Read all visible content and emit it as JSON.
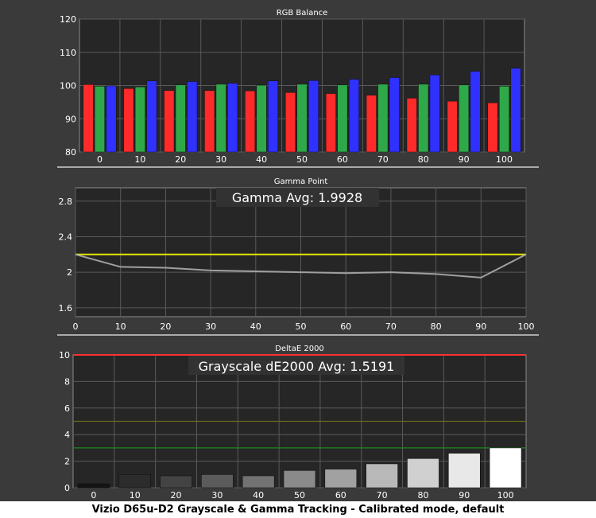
{
  "caption": "Vizio D65u-D2 Grayscale & Gamma Tracking - Calibrated mode, default",
  "colors": {
    "red": "#ff2a2a",
    "green": "#2fa84a",
    "blue": "#3030ff",
    "yellow": "#e6e600",
    "refline": "#ff3030"
  },
  "chart_data": [
    {
      "type": "bar",
      "title": "RGB Balance",
      "categories": [
        "0",
        "10",
        "20",
        "30",
        "40",
        "50",
        "60",
        "70",
        "80",
        "90",
        "100"
      ],
      "series": [
        {
          "color": "red",
          "values": [
            100.3,
            99.1,
            98.5,
            98.5,
            98.4,
            97.9,
            97.6,
            97.1,
            96.2,
            95.3,
            94.8
          ]
        },
        {
          "color": "green",
          "values": [
            99.8,
            99.6,
            100.2,
            100.4,
            100.1,
            100.4,
            100.2,
            100.4,
            100.4,
            100.2,
            99.8
          ]
        },
        {
          "color": "blue",
          "values": [
            99.9,
            101.4,
            101.2,
            100.7,
            101.4,
            101.5,
            101.9,
            102.4,
            103.2,
            104.3,
            105.2
          ]
        }
      ],
      "ylim": [
        80,
        120
      ],
      "yticks": [
        80,
        90,
        100,
        110,
        120
      ],
      "grid": true
    },
    {
      "type": "line",
      "title": "Gamma Point",
      "annotation": "Gamma Avg: 1.9928",
      "x": [
        0,
        10,
        20,
        30,
        40,
        50,
        60,
        70,
        80,
        90,
        100
      ],
      "series": [
        {
          "color": "gray",
          "values": [
            2.2,
            2.06,
            2.05,
            2.02,
            2.01,
            2.0,
            1.99,
            2.0,
            1.98,
            1.94,
            2.2
          ]
        }
      ],
      "reference": 2.2,
      "xlim": [
        0,
        100
      ],
      "xticks": [
        0,
        10,
        20,
        30,
        40,
        50,
        60,
        70,
        80,
        90,
        100
      ],
      "ylim": [
        1.5,
        2.95
      ],
      "yticks": [
        1.6,
        2,
        2.4,
        2.8
      ],
      "grid": true
    },
    {
      "type": "bar",
      "title": "DeltaE 2000",
      "annotation": "Grayscale dE2000 Avg: 1.5191",
      "categories": [
        "0",
        "10",
        "20",
        "30",
        "40",
        "50",
        "60",
        "70",
        "80",
        "90",
        "100"
      ],
      "values": [
        0.3,
        1.0,
        0.9,
        1.0,
        0.9,
        1.3,
        1.4,
        1.8,
        2.2,
        2.6,
        3.0
      ],
      "threshold_lines": [
        10,
        5,
        3
      ],
      "ylim": [
        0,
        10
      ],
      "yticks": [
        0,
        2,
        4,
        6,
        8,
        10
      ],
      "grid": true
    }
  ]
}
